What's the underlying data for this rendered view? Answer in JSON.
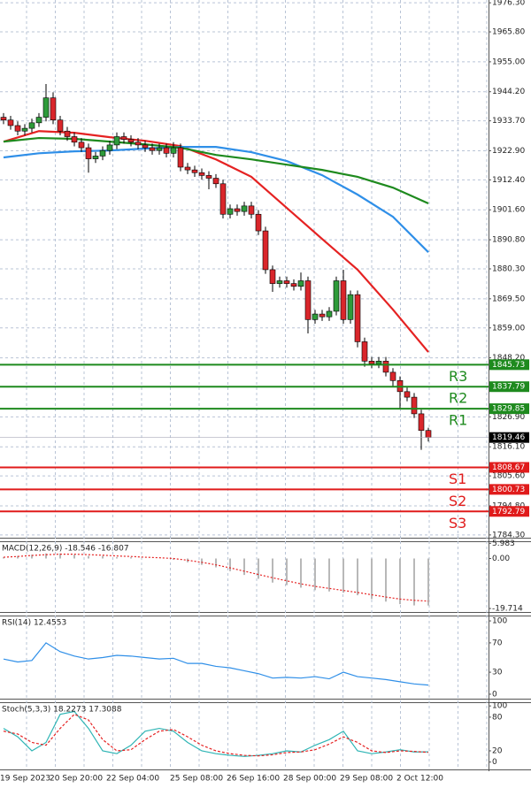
{
  "chart_data": {
    "type": "candlestick",
    "categories": [
      "19 Sep 2023",
      null,
      null,
      null,
      null,
      null,
      null,
      "20 Sep 20:00",
      null,
      null,
      null,
      null,
      null,
      null,
      null,
      "22 Sep 04:00",
      null,
      null,
      null,
      null,
      null,
      null,
      null,
      null,
      "25 Sep 08:00",
      null,
      null,
      null,
      null,
      null,
      null,
      null,
      "26 Sep 16:00",
      null,
      null,
      null,
      null,
      null,
      null,
      null,
      "28 Sep 00:00",
      null,
      null,
      null,
      null,
      null,
      null,
      null,
      "29 Sep 08:00",
      null,
      null,
      null,
      null,
      null,
      null,
      null,
      "2 Oct 12:00",
      null,
      null,
      null,
      null
    ],
    "ohlc": [
      [
        1935,
        1936.5,
        1932.5,
        1934
      ],
      [
        1934,
        1935.5,
        1930.5,
        1932
      ],
      [
        1932,
        1933.5,
        1928.5,
        1930
      ],
      [
        1930,
        1932.5,
        1928.5,
        1931
      ],
      [
        1931,
        1934.5,
        1929.5,
        1933
      ],
      [
        1933,
        1936.5,
        1931.5,
        1935
      ],
      [
        1935,
        1947,
        1933.5,
        1942
      ],
      [
        1942,
        1944,
        1932.5,
        1934
      ],
      [
        1934,
        1935.5,
        1928.5,
        1930
      ],
      [
        1930,
        1931.5,
        1926.5,
        1928
      ],
      [
        1928,
        1929.5,
        1924.5,
        1926
      ],
      [
        1926,
        1927.5,
        1922.5,
        1924
      ],
      [
        1924,
        1925.5,
        1915,
        1920
      ],
      [
        1920,
        1922.5,
        1918.5,
        1921
      ],
      [
        1921,
        1924.5,
        1919.5,
        1923
      ],
      [
        1923,
        1926.5,
        1921.5,
        1925
      ],
      [
        1925,
        1929.5,
        1923.5,
        1928
      ],
      [
        1928,
        1929.5,
        1925.5,
        1927
      ],
      [
        1927,
        1928.5,
        1924.5,
        1926
      ],
      [
        1926,
        1927.5,
        1923.5,
        1925
      ],
      [
        1925,
        1926.5,
        1922.5,
        1924
      ],
      [
        1924,
        1925.5,
        1921.5,
        1923
      ],
      [
        1923,
        1925.5,
        1921.5,
        1924
      ],
      [
        1924,
        1925.5,
        1920.5,
        1922
      ],
      [
        1922,
        1926,
        1920.5,
        1924
      ],
      [
        1924,
        1925.5,
        1915.5,
        1917
      ],
      [
        1917,
        1918.5,
        1914.5,
        1916
      ],
      [
        1916,
        1917.5,
        1913.5,
        1915
      ],
      [
        1915,
        1916.5,
        1912.5,
        1914
      ],
      [
        1914,
        1915.5,
        1909,
        1913
      ],
      [
        1913,
        1914.5,
        1909.5,
        1911
      ],
      [
        1911,
        1912.5,
        1898.5,
        1900
      ],
      [
        1900,
        1903.5,
        1898.5,
        1902
      ],
      [
        1902,
        1903.5,
        1899.5,
        1901
      ],
      [
        1901,
        1904.5,
        1899.5,
        1903
      ],
      [
        1903,
        1904.5,
        1898.5,
        1900
      ],
      [
        1900,
        1901.5,
        1892.5,
        1894
      ],
      [
        1894,
        1895.5,
        1878.5,
        1880
      ],
      [
        1880,
        1881.5,
        1872,
        1875
      ],
      [
        1875,
        1877.5,
        1873.5,
        1876
      ],
      [
        1876,
        1877.5,
        1873.5,
        1875
      ],
      [
        1875,
        1876.5,
        1872.5,
        1874
      ],
      [
        1874,
        1879,
        1872.5,
        1876
      ],
      [
        1876,
        1877.5,
        1857,
        1862
      ],
      [
        1862,
        1865.5,
        1860.5,
        1864
      ],
      [
        1864,
        1865.5,
        1861.5,
        1863
      ],
      [
        1863,
        1866.5,
        1861.5,
        1865
      ],
      [
        1865,
        1877.5,
        1863.5,
        1876
      ],
      [
        1876,
        1880,
        1860.5,
        1862
      ],
      [
        1862,
        1872.5,
        1860.5,
        1871
      ],
      [
        1871,
        1872.5,
        1852,
        1854
      ],
      [
        1854,
        1855.5,
        1845,
        1847
      ],
      [
        1847,
        1848.5,
        1844.5,
        1846
      ],
      [
        1846,
        1848.5,
        1844.5,
        1847
      ],
      [
        1847,
        1848.5,
        1841.5,
        1843
      ],
      [
        1843,
        1844.5,
        1838,
        1840
      ],
      [
        1840,
        1841.5,
        1830,
        1836
      ],
      [
        1836,
        1837.5,
        1832.5,
        1834
      ],
      [
        1834,
        1835.5,
        1826.5,
        1828
      ],
      [
        1828,
        1829.5,
        1815,
        1822
      ],
      [
        1822,
        1823,
        1818,
        1819.46
      ]
    ],
    "bull_color": "#2e9b3a",
    "bear_color": "#d9262b",
    "ylim": [
      1783.3,
      1977.3
    ],
    "yticks": [
      {
        "value": 1976.3,
        "label": "1976.30"
      },
      {
        "value": 1965.8,
        "label": "1965.80"
      },
      {
        "value": 1955,
        "label": "1955.00"
      },
      {
        "value": 1944.2,
        "label": "1944.20"
      },
      {
        "value": 1933.7,
        "label": "1933.70"
      },
      {
        "value": 1922.9,
        "label": "1922.90"
      },
      {
        "value": 1912.4,
        "label": "1912.40"
      },
      {
        "value": 1901.6,
        "label": "1901.60"
      },
      {
        "value": 1890.8,
        "label": "1890.80"
      },
      {
        "value": 1880.3,
        "label": "1880.30"
      },
      {
        "value": 1869.5,
        "label": "1869.50"
      },
      {
        "value": 1859,
        "label": "1859.00"
      },
      {
        "value": 1848.2,
        "label": "1848.20"
      },
      {
        "value": 1826.9,
        "label": "1826.90"
      },
      {
        "value": 1816.1,
        "label": "1816.10"
      },
      {
        "value": 1805.6,
        "label": "1805.60"
      },
      {
        "value": 1794.8,
        "label": "1794.80"
      },
      {
        "value": 1784.3,
        "label": "1784.30"
      }
    ],
    "grid": true,
    "moving_averages": [
      {
        "color": "#e52222",
        "x": [
          0,
          5,
          10,
          15,
          20,
          25,
          30,
          35,
          40,
          45,
          50,
          55,
          60
        ],
        "values": [
          1926.2,
          1930,
          1929.4,
          1927.8,
          1926.5,
          1924.6,
          1919.8,
          1913.5,
          1902.3,
          1891.1,
          1880,
          1865.6,
          1850.3
        ]
      },
      {
        "color": "#2f8fe8",
        "x": [
          0,
          5,
          10,
          15,
          20,
          25,
          30,
          35,
          40,
          45,
          50,
          55,
          60
        ],
        "values": [
          1920.5,
          1922,
          1922.7,
          1923,
          1923.7,
          1924.3,
          1924.3,
          1922.4,
          1919.2,
          1914.1,
          1907.1,
          1899.1,
          1886.3
        ]
      },
      {
        "color": "#1e8a1e",
        "x": [
          0,
          5,
          10,
          15,
          20,
          25,
          30,
          35,
          40,
          45,
          50,
          55,
          60
        ],
        "values": [
          1926.2,
          1927.5,
          1927.2,
          1926.2,
          1925.2,
          1924,
          1921.4,
          1919.8,
          1917.9,
          1916,
          1913.5,
          1909.6,
          1903.9
        ]
      }
    ],
    "levels": [
      {
        "name": "R3",
        "value": 1845.73,
        "color": "#1e8a1e"
      },
      {
        "name": "R2",
        "value": 1837.79,
        "color": "#1e8a1e"
      },
      {
        "name": "R1",
        "value": 1829.85,
        "color": "#1e8a1e"
      },
      {
        "name": "S1",
        "value": 1808.67,
        "color": "#e01b1b"
      },
      {
        "name": "S2",
        "value": 1800.73,
        "color": "#e01b1b"
      },
      {
        "name": "S3",
        "value": 1792.79,
        "color": "#e01b1b"
      }
    ],
    "last_price": 1819.46,
    "macd": {
      "label": "MACD(12,26,9) -18.546 -16.807",
      "ylim": [
        -21.1,
        6.8
      ],
      "yticks": [
        5.983,
        {
          "value": 0,
          "label": "0.00"
        },
        -19.714
      ],
      "x": [
        0,
        2,
        4,
        6,
        8,
        10,
        12,
        14,
        16,
        18,
        20,
        22,
        24,
        26,
        28,
        30,
        32,
        34,
        36,
        38,
        40,
        42,
        44,
        46,
        48,
        50,
        52,
        54,
        56,
        58,
        60
      ],
      "histogram": [
        0.5,
        1,
        1.5,
        2,
        2,
        1.5,
        1,
        1,
        0.5,
        0.5,
        0,
        0,
        -0.5,
        -1.5,
        -2.5,
        -3.5,
        -5,
        -6.5,
        -8,
        -9.5,
        -10.5,
        -11.5,
        -12.5,
        -13,
        -13.5,
        -14.5,
        -16,
        -17,
        -18,
        -18.5,
        -18.546
      ],
      "signal": [
        0.5,
        0.8,
        1.2,
        1.5,
        1.7,
        1.7,
        1.5,
        1.3,
        1,
        0.8,
        0.5,
        0.3,
        0,
        -0.7,
        -1.5,
        -2.5,
        -3.7,
        -5,
        -6.3,
        -7.6,
        -8.8,
        -10,
        -11,
        -11.8,
        -12.6,
        -13.4,
        -14.3,
        -15.2,
        -16,
        -16.5,
        -16.807
      ],
      "hist_color": "#b8b8b8",
      "signal_color": "#e52222"
    },
    "rsi": {
      "label": "RSI(14) 12.4553",
      "ylim": [
        -6.1,
        107.3
      ],
      "yticks": [
        100,
        70,
        30,
        0
      ],
      "color": "#2f8fe8",
      "x": [
        0,
        2,
        4,
        6,
        8,
        10,
        12,
        14,
        16,
        18,
        20,
        22,
        24,
        26,
        28,
        30,
        32,
        34,
        36,
        38,
        40,
        42,
        44,
        46,
        48,
        50,
        52,
        54,
        56,
        58,
        60
      ],
      "values": [
        48,
        44,
        46,
        70,
        58,
        52,
        48,
        50,
        53,
        52,
        50,
        48,
        49,
        42,
        42,
        38,
        36,
        32,
        28,
        22,
        23,
        22,
        24,
        21,
        30,
        24,
        22,
        20,
        17,
        14,
        12.4553
      ]
    },
    "stoch": {
      "label": "Stoch(5,3,3) 18.2273 17.3088",
      "ylim": [
        -13.1,
        106.6
      ],
      "yticks": [
        100,
        80,
        20,
        0
      ],
      "k_color": "#2fb5b5",
      "d_color": "#e52222",
      "x": [
        0,
        2,
        4,
        6,
        8,
        10,
        12,
        14,
        16,
        18,
        20,
        22,
        24,
        26,
        28,
        30,
        32,
        34,
        36,
        38,
        40,
        42,
        44,
        46,
        48,
        50,
        52,
        54,
        56,
        58,
        60
      ],
      "k": [
        60,
        45,
        20,
        35,
        85,
        90,
        60,
        20,
        15,
        30,
        55,
        60,
        55,
        35,
        20,
        15,
        12,
        10,
        12,
        15,
        20,
        18,
        30,
        40,
        55,
        20,
        15,
        18,
        22,
        18,
        18.2273
      ],
      "d": [
        55,
        50,
        35,
        30,
        60,
        85,
        75,
        40,
        20,
        22,
        40,
        55,
        58,
        45,
        30,
        20,
        15,
        12,
        11,
        13,
        17,
        18,
        22,
        32,
        45,
        35,
        20,
        17,
        20,
        19,
        17.3088
      ]
    }
  }
}
